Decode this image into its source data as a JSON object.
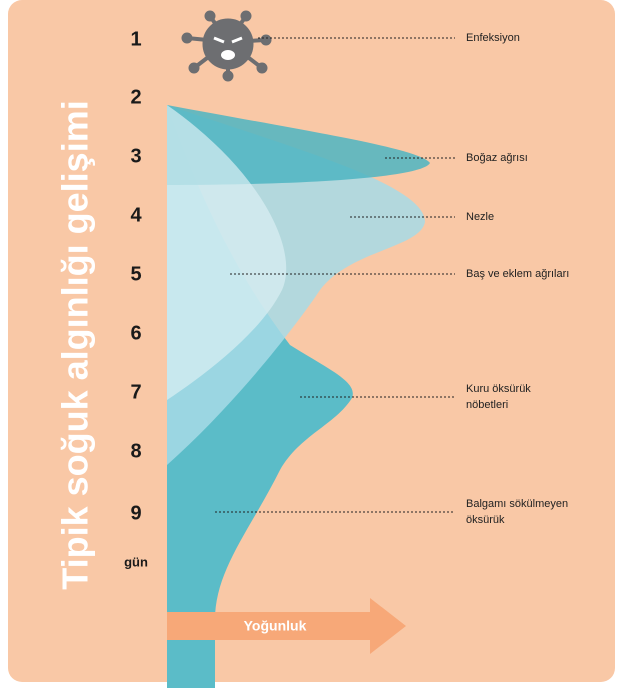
{
  "title": "Tipik soğuk algınlığı gelişimi",
  "days": [
    "1",
    "2",
    "3",
    "4",
    "5",
    "6",
    "7",
    "8",
    "9"
  ],
  "day_unit": "gün",
  "symptoms": [
    {
      "lines": [
        "Enfeksiyon"
      ]
    },
    {
      "lines": [
        "Boğaz ağrısı"
      ]
    },
    {
      "lines": [
        "Nezle"
      ]
    },
    {
      "lines": [
        "Baş ve eklem ağrıları"
      ]
    },
    {
      "lines": [
        "Kuru öksürük",
        "nöbetleri"
      ]
    },
    {
      "lines": [
        "Balgamı sökülmeyen",
        "öksürük"
      ]
    }
  ],
  "arrow_label": "Yoğunluk"
}
